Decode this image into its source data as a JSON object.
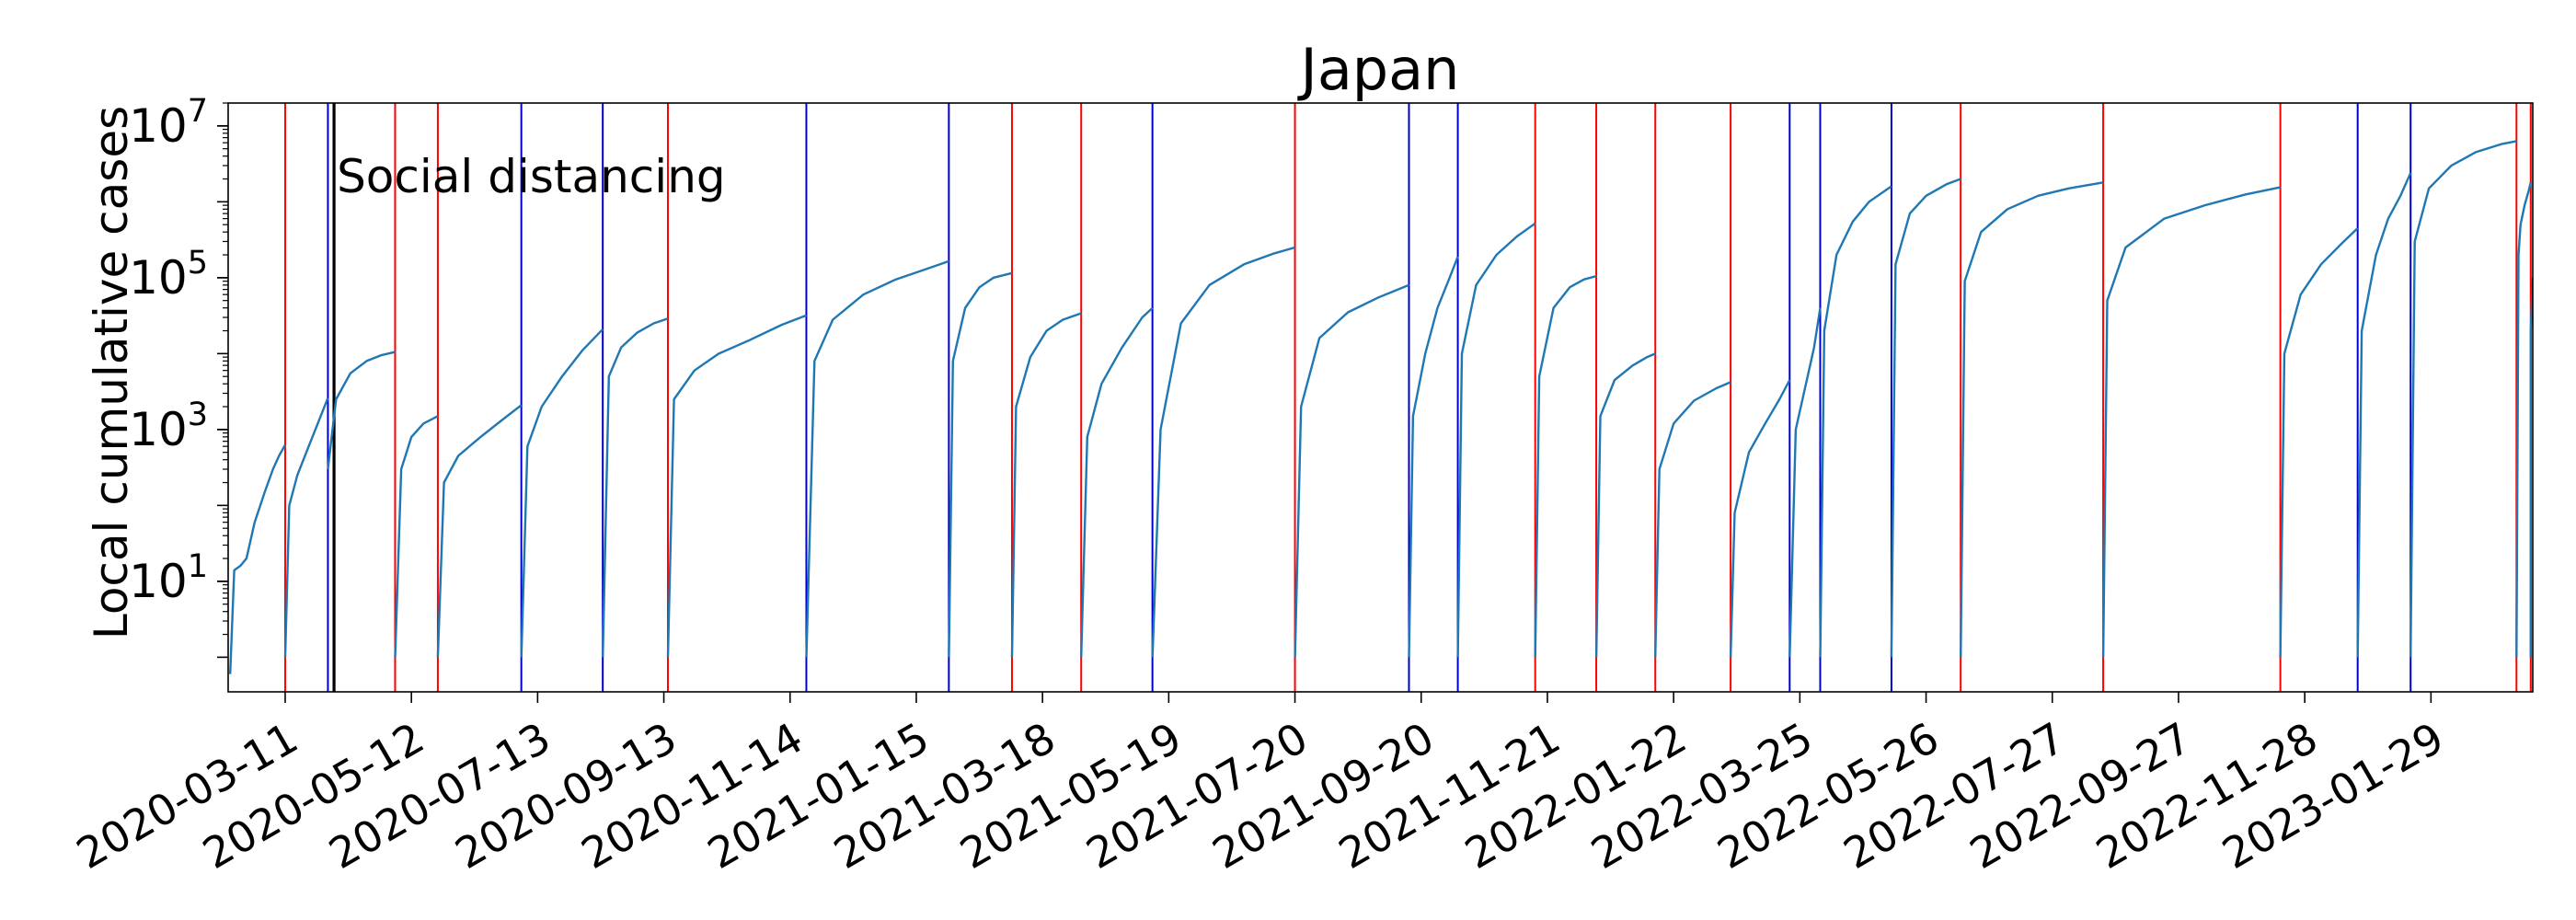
{
  "chart_data": {
    "type": "line",
    "title": "Japan",
    "ylabel": "Local cumulative cases",
    "xlabel": "",
    "yscale": "log",
    "ylim": [
      0.35,
      20000000
    ],
    "xlim": [
      "2020-02-12",
      "2023-03-20"
    ],
    "grid": false,
    "x_ticks": [
      "2020-03-11",
      "2020-05-12",
      "2020-07-13",
      "2020-09-13",
      "2020-11-14",
      "2021-01-15",
      "2021-03-18",
      "2021-05-19",
      "2021-07-20",
      "2021-09-20",
      "2021-11-21",
      "2022-01-22",
      "2022-03-25",
      "2022-05-26",
      "2022-07-27",
      "2022-09-27",
      "2022-11-28",
      "2023-01-29"
    ],
    "y_ticks": [
      {
        "value": 10,
        "base": "10",
        "exp": "1"
      },
      {
        "value": 1000,
        "base": "10",
        "exp": "3"
      },
      {
        "value": 100000,
        "base": "10",
        "exp": "5"
      },
      {
        "value": 10000000,
        "base": "10",
        "exp": "7"
      }
    ],
    "series": [
      {
        "color": "#1f77b4",
        "segments": [
          {
            "x": [
              "2020-02-13",
              "2020-02-15",
              "2020-02-18",
              "2020-02-21",
              "2020-02-25",
              "2020-03-01",
              "2020-03-05",
              "2020-03-08",
              "2020-03-11"
            ],
            "y": [
              0.6,
              14,
              16,
              20,
              60,
              150,
              300,
              450,
              630
            ]
          },
          {
            "x": [
              "2020-03-11",
              "2020-03-13",
              "2020-03-17",
              "2020-03-22",
              "2020-03-27",
              "2020-04-01"
            ],
            "y": [
              1,
              100,
              250,
              550,
              1200,
              2600
            ]
          },
          {
            "x": [
              "2020-04-01",
              "2020-04-05",
              "2020-04-12",
              "2020-04-20",
              "2020-04-27",
              "2020-05-04"
            ],
            "y": [
              300,
              2500,
              5500,
              8000,
              9500,
              10500
            ]
          },
          {
            "x": [
              "2020-05-04",
              "2020-05-07",
              "2020-05-12",
              "2020-05-18",
              "2020-05-25"
            ],
            "y": [
              1,
              300,
              800,
              1200,
              1500
            ]
          },
          {
            "x": [
              "2020-05-25",
              "2020-05-28",
              "2020-06-04",
              "2020-06-15",
              "2020-06-25",
              "2020-07-05"
            ],
            "y": [
              1,
              200,
              450,
              800,
              1300,
              2100
            ]
          },
          {
            "x": [
              "2020-07-05",
              "2020-07-08",
              "2020-07-15",
              "2020-07-25",
              "2020-08-04",
              "2020-08-14"
            ],
            "y": [
              1,
              600,
              2000,
              5000,
              11000,
              21000
            ]
          },
          {
            "x": [
              "2020-08-14",
              "2020-08-17",
              "2020-08-23",
              "2020-08-31",
              "2020-09-08",
              "2020-09-15"
            ],
            "y": [
              1,
              5000,
              12000,
              19000,
              25000,
              29000
            ]
          },
          {
            "x": [
              "2020-09-15",
              "2020-09-18",
              "2020-09-28",
              "2020-10-10",
              "2020-10-25",
              "2020-11-10",
              "2020-11-22"
            ],
            "y": [
              1,
              2500,
              6000,
              10000,
              15000,
              24000,
              32000
            ]
          },
          {
            "x": [
              "2020-11-22",
              "2020-11-26",
              "2020-12-05",
              "2020-12-20",
              "2021-01-05",
              "2021-01-20",
              "2021-01-31"
            ],
            "y": [
              1,
              8000,
              28000,
              60000,
              95000,
              130000,
              165000
            ]
          },
          {
            "x": [
              "2021-01-31",
              "2021-02-02",
              "2021-02-08",
              "2021-02-15",
              "2021-02-22",
              "2021-03-03"
            ],
            "y": [
              1,
              8000,
              40000,
              75000,
              100000,
              115000
            ]
          },
          {
            "x": [
              "2021-03-03",
              "2021-03-05",
              "2021-03-12",
              "2021-03-20",
              "2021-03-28",
              "2021-04-06"
            ],
            "y": [
              1,
              2000,
              9000,
              20000,
              28000,
              34000
            ]
          },
          {
            "x": [
              "2021-04-06",
              "2021-04-09",
              "2021-04-16",
              "2021-04-26",
              "2021-05-06",
              "2021-05-11"
            ],
            "y": [
              1,
              800,
              4000,
              12000,
              30000,
              40000
            ]
          },
          {
            "x": [
              "2021-05-11",
              "2021-05-15",
              "2021-05-25",
              "2021-06-08",
              "2021-06-25",
              "2021-07-10",
              "2021-07-20"
            ],
            "y": [
              1,
              1000,
              25000,
              80000,
              150000,
              210000,
              250000
            ]
          },
          {
            "x": [
              "2021-07-20",
              "2021-07-23",
              "2021-08-01",
              "2021-08-15",
              "2021-08-30",
              "2021-09-14"
            ],
            "y": [
              1,
              2000,
              16000,
              35000,
              55000,
              80000
            ]
          },
          {
            "x": [
              "2021-09-14",
              "2021-09-16",
              "2021-09-22",
              "2021-09-28",
              "2021-10-04",
              "2021-10-08"
            ],
            "y": [
              1,
              1500,
              10000,
              40000,
              100000,
              190000
            ]
          },
          {
            "x": [
              "2021-10-08",
              "2021-10-10",
              "2021-10-17",
              "2021-10-27",
              "2021-11-06",
              "2021-11-15"
            ],
            "y": [
              1,
              10000,
              80000,
              200000,
              350000,
              520000
            ]
          },
          {
            "x": [
              "2021-11-15",
              "2021-11-17",
              "2021-11-24",
              "2021-12-02",
              "2021-12-09",
              "2021-12-15"
            ],
            "y": [
              1,
              5000,
              40000,
              75000,
              95000,
              105000
            ]
          },
          {
            "x": [
              "2021-12-15",
              "2021-12-17",
              "2021-12-24",
              "2022-01-02",
              "2022-01-09",
              "2022-01-13"
            ],
            "y": [
              1,
              1500,
              4500,
              7000,
              9000,
              10000
            ]
          },
          {
            "x": [
              "2022-01-13",
              "2022-01-15",
              "2022-01-22",
              "2022-02-01",
              "2022-02-12",
              "2022-02-19"
            ],
            "y": [
              1,
              300,
              1200,
              2400,
              3500,
              4200
            ]
          },
          {
            "x": [
              "2022-02-19",
              "2022-02-21",
              "2022-02-28",
              "2022-03-08",
              "2022-03-15",
              "2022-03-20"
            ],
            "y": [
              1,
              80,
              500,
              1200,
              2500,
              4500
            ]
          },
          {
            "x": [
              "2022-03-20",
              "2022-03-23",
              "2022-03-28",
              "2022-04-01",
              "2022-04-04"
            ],
            "y": [
              1,
              1000,
              4000,
              12000,
              40000
            ]
          },
          {
            "x": [
              "2022-04-04",
              "2022-04-06",
              "2022-04-12",
              "2022-04-20",
              "2022-04-28",
              "2022-05-09"
            ],
            "y": [
              1,
              20000,
              200000,
              550000,
              1000000,
              1600000
            ]
          },
          {
            "x": [
              "2022-05-09",
              "2022-05-11",
              "2022-05-18",
              "2022-05-26",
              "2022-06-05",
              "2022-06-12"
            ],
            "y": [
              1,
              150000,
              700000,
              1200000,
              1700000,
              2000000
            ]
          },
          {
            "x": [
              "2022-06-12",
              "2022-06-14",
              "2022-06-22",
              "2022-07-05",
              "2022-07-20",
              "2022-08-04",
              "2022-08-21"
            ],
            "y": [
              1,
              90000,
              400000,
              800000,
              1200000,
              1500000,
              1800000
            ]
          },
          {
            "x": [
              "2022-08-21",
              "2022-08-23",
              "2022-09-01",
              "2022-09-20",
              "2022-10-10",
              "2022-10-30",
              "2022-11-16"
            ],
            "y": [
              1,
              50000,
              250000,
              600000,
              900000,
              1250000,
              1550000
            ]
          },
          {
            "x": [
              "2022-11-16",
              "2022-11-18",
              "2022-11-26",
              "2022-12-06",
              "2022-12-16",
              "2022-12-24"
            ],
            "y": [
              1,
              10000,
              60000,
              150000,
              280000,
              450000
            ]
          },
          {
            "x": [
              "2022-12-24",
              "2022-12-26",
              "2023-01-02",
              "2023-01-08",
              "2023-01-14",
              "2023-01-19"
            ],
            "y": [
              1,
              20000,
              200000,
              600000,
              1200000,
              2400000
            ]
          },
          {
            "x": [
              "2023-01-19",
              "2023-01-21",
              "2023-01-28",
              "2023-02-08",
              "2023-02-20",
              "2023-03-05",
              "2023-03-12"
            ],
            "y": [
              1,
              300000,
              1500000,
              3000000,
              4500000,
              5800000,
              6300000
            ]
          },
          {
            "x": [
              "2023-03-12",
              "2023-03-13",
              "2023-03-14",
              "2023-03-16",
              "2023-03-18",
              "2023-03-19"
            ],
            "y": [
              1,
              200000,
              500000,
              900000,
              1400000,
              1800000
            ]
          },
          {
            "x": [
              "2023-03-19",
              "2023-03-19",
              "2023-03-20"
            ],
            "y": [
              1,
              20000,
              100000
            ]
          }
        ]
      }
    ],
    "vlines": [
      {
        "x": "2020-03-11",
        "color": "#ff0000"
      },
      {
        "x": "2020-04-01",
        "color": "#0000cc"
      },
      {
        "x": "2020-04-04",
        "color": "#000000"
      },
      {
        "x": "2020-05-04",
        "color": "#ff0000"
      },
      {
        "x": "2020-05-25",
        "color": "#ff0000"
      },
      {
        "x": "2020-07-05",
        "color": "#0000cc"
      },
      {
        "x": "2020-08-14",
        "color": "#0000cc"
      },
      {
        "x": "2020-09-15",
        "color": "#ff0000"
      },
      {
        "x": "2020-11-22",
        "color": "#0000cc"
      },
      {
        "x": "2021-01-31",
        "color": "#0000cc"
      },
      {
        "x": "2021-03-03",
        "color": "#ff0000"
      },
      {
        "x": "2021-04-06",
        "color": "#ff0000"
      },
      {
        "x": "2021-05-11",
        "color": "#0000cc"
      },
      {
        "x": "2021-07-20",
        "color": "#ff0000"
      },
      {
        "x": "2021-09-14",
        "color": "#0000cc"
      },
      {
        "x": "2021-10-08",
        "color": "#0000cc"
      },
      {
        "x": "2021-11-15",
        "color": "#ff0000"
      },
      {
        "x": "2021-12-15",
        "color": "#ff0000"
      },
      {
        "x": "2022-01-13",
        "color": "#ff0000"
      },
      {
        "x": "2022-02-19",
        "color": "#ff0000"
      },
      {
        "x": "2022-03-20",
        "color": "#0000cc"
      },
      {
        "x": "2022-04-04",
        "color": "#0000cc"
      },
      {
        "x": "2022-05-09",
        "color": "#0000cc"
      },
      {
        "x": "2022-06-12",
        "color": "#ff0000"
      },
      {
        "x": "2022-08-21",
        "color": "#ff0000"
      },
      {
        "x": "2022-11-16",
        "color": "#ff0000"
      },
      {
        "x": "2022-12-24",
        "color": "#0000cc"
      },
      {
        "x": "2023-01-19",
        "color": "#0000cc"
      },
      {
        "x": "2023-03-12",
        "color": "#ff0000"
      },
      {
        "x": "2023-03-19",
        "color": "#ff0000"
      }
    ],
    "annotations": [
      {
        "text": "Social distancing",
        "x": "2020-04-04",
        "y": 1500000
      }
    ]
  }
}
